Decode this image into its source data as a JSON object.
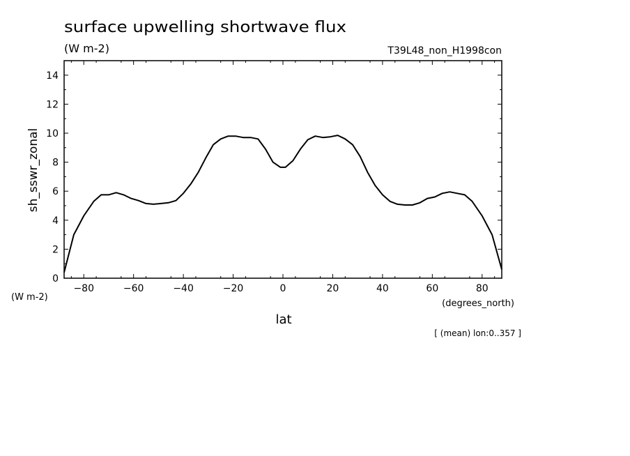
{
  "chart_data": {
    "type": "line",
    "title": "surface upwelling shortwave flux",
    "units": "(W m-2)",
    "run_label": "T39L48_non_H1998con",
    "ylabel": "sh_sswr_zonal",
    "y_units": "(W m-2)",
    "xlabel": "lat",
    "x_units": "(degrees_north)",
    "footnote": "[ (mean) lon:0..357 ]",
    "xlim": [
      -87.9,
      87.9
    ],
    "ylim": [
      0,
      15
    ],
    "x_ticks": [
      -80,
      -60,
      -40,
      -20,
      0,
      20,
      40,
      60,
      80
    ],
    "y_ticks": [
      0,
      2,
      4,
      6,
      8,
      10,
      12,
      14
    ],
    "line_color": "#000000",
    "series": [
      {
        "x": [
          -87.9,
          -84,
          -80,
          -76,
          -73,
          -70,
          -67,
          -64,
          -61,
          -58,
          -55,
          -52,
          -49,
          -46,
          -43,
          -40,
          -37,
          -34,
          -31,
          -28,
          -25,
          -22,
          -19,
          -16,
          -13,
          -10,
          -7,
          -4,
          -1,
          1,
          4,
          7,
          10,
          13,
          16,
          19,
          22,
          25,
          28,
          31,
          34,
          37,
          40,
          43,
          46,
          49,
          52,
          55,
          58,
          61,
          64,
          67,
          70,
          73,
          76,
          80,
          84,
          87.9
        ],
        "y": [
          0.4,
          3.0,
          4.3,
          5.3,
          5.75,
          5.75,
          5.9,
          5.75,
          5.5,
          5.35,
          5.15,
          5.1,
          5.15,
          5.2,
          5.35,
          5.85,
          6.5,
          7.3,
          8.3,
          9.2,
          9.6,
          9.8,
          9.8,
          9.7,
          9.7,
          9.6,
          8.9,
          8.0,
          7.65,
          7.65,
          8.1,
          8.9,
          9.55,
          9.8,
          9.7,
          9.75,
          9.85,
          9.6,
          9.2,
          8.4,
          7.3,
          6.4,
          5.75,
          5.3,
          5.1,
          5.05,
          5.05,
          5.2,
          5.5,
          5.6,
          5.85,
          5.95,
          5.85,
          5.75,
          5.3,
          4.3,
          3.0,
          0.6
        ]
      }
    ]
  }
}
